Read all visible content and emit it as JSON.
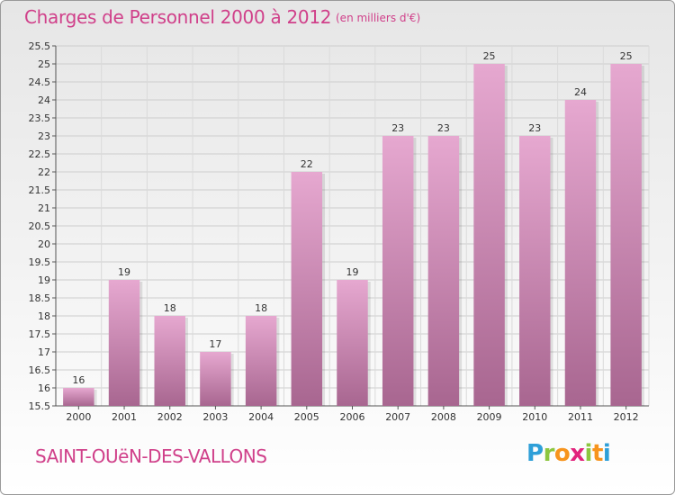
{
  "header": {
    "title": "Charges de Personnel 2000 à 2012",
    "unit": "(en milliers d'€)"
  },
  "footer": {
    "town": "SAINT-OUëN-DES-VALLONS",
    "logo_letters": [
      "P",
      "r",
      "o",
      "x",
      "i",
      "t",
      "i"
    ]
  },
  "colors": {
    "title": "#d0408a",
    "bar_top": "#e3a4cc",
    "bar_bottom": "#a96a93",
    "grid": "#cfcfcf"
  },
  "chart_data": {
    "type": "bar",
    "categories": [
      "2000",
      "2001",
      "2002",
      "2003",
      "2004",
      "2005",
      "2006",
      "2007",
      "2008",
      "2009",
      "2010",
      "2011",
      "2012"
    ],
    "values": [
      16,
      19,
      18,
      17,
      18,
      22,
      19,
      23,
      23,
      25,
      23,
      24,
      25
    ],
    "title": "Charges de Personnel 2000 à 2012",
    "ylim": [
      15.5,
      25.5
    ],
    "yticks": [
      "15.5",
      "16",
      "16.5",
      "17",
      "17.5",
      "18",
      "18.5",
      "19",
      "19.5",
      "20",
      "20.5",
      "21",
      "21.5",
      "22",
      "22.5",
      "23",
      "23.5",
      "24",
      "24.5",
      "25",
      "25.5"
    ],
    "grid": true,
    "data_labels": true
  }
}
